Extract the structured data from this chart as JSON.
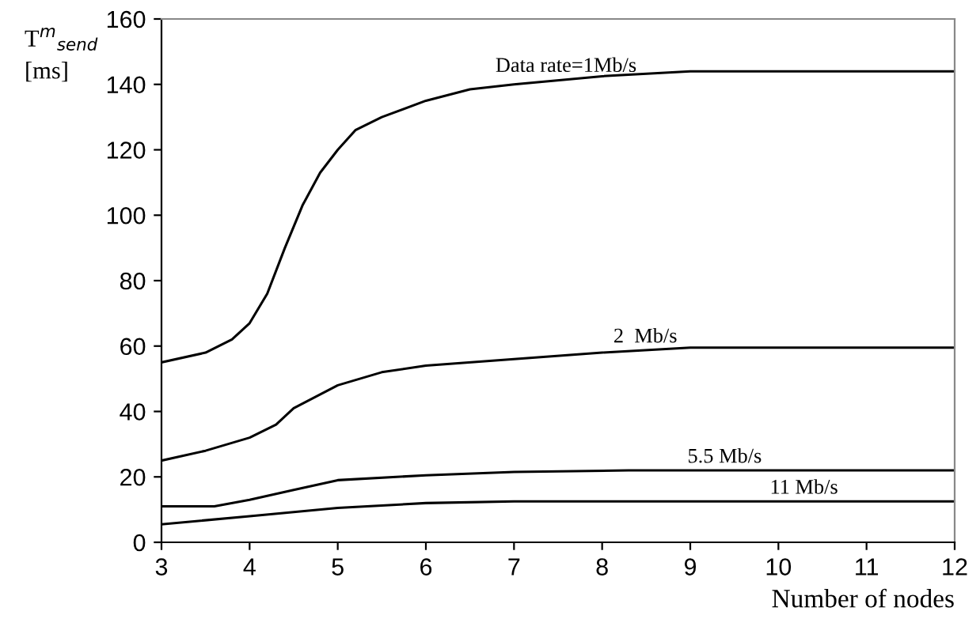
{
  "chart_data": {
    "type": "line",
    "xlabel": "Number of nodes",
    "ylabel": "T$^{m}$$_{send}$\n[ms]",
    "xlim": [
      3,
      12
    ],
    "xticks": [
      3,
      4,
      5,
      6,
      7,
      8,
      9,
      10,
      11,
      12
    ],
    "ylim": [
      0,
      160
    ],
    "yticks": [
      0,
      20,
      40,
      60,
      80,
      100,
      120,
      140,
      160
    ],
    "grid": false,
    "legend": false,
    "marker": "none",
    "line_style": "solid",
    "series": [
      {
        "name": "Data rate=1Mb/s",
        "color": "#000000",
        "x": [
          3,
          3.5,
          3.8,
          4,
          4.2,
          4.4,
          4.6,
          4.8,
          5,
          5.2,
          5.5,
          6,
          6.5,
          7,
          8,
          9,
          12
        ],
        "values": [
          55,
          58,
          62,
          67,
          76,
          90,
          103,
          113,
          120,
          126,
          130,
          135,
          138.5,
          140,
          142.5,
          144,
          144
        ]
      },
      {
        "name": "2  Mb/s",
        "color": "#000000",
        "x": [
          3,
          3.5,
          4,
          4.3,
          4.5,
          5,
          5.5,
          6,
          7,
          8,
          9,
          12
        ],
        "values": [
          25,
          28,
          32,
          36,
          41,
          48,
          52,
          54,
          56,
          58,
          59.5,
          59.5
        ]
      },
      {
        "name": "5.5 Mb/s",
        "color": "#000000",
        "x": [
          3,
          3.6,
          4,
          4.5,
          5,
          6,
          7,
          8.3,
          12
        ],
        "values": [
          11,
          11,
          13,
          16,
          19,
          20.5,
          21.5,
          22,
          22
        ]
      },
      {
        "name": "11 Mb/s",
        "color": "#000000",
        "x": [
          3,
          4,
          5,
          6,
          7,
          12
        ],
        "values": [
          5.5,
          8,
          10.5,
          12,
          12.5,
          12.5
        ]
      }
    ]
  }
}
